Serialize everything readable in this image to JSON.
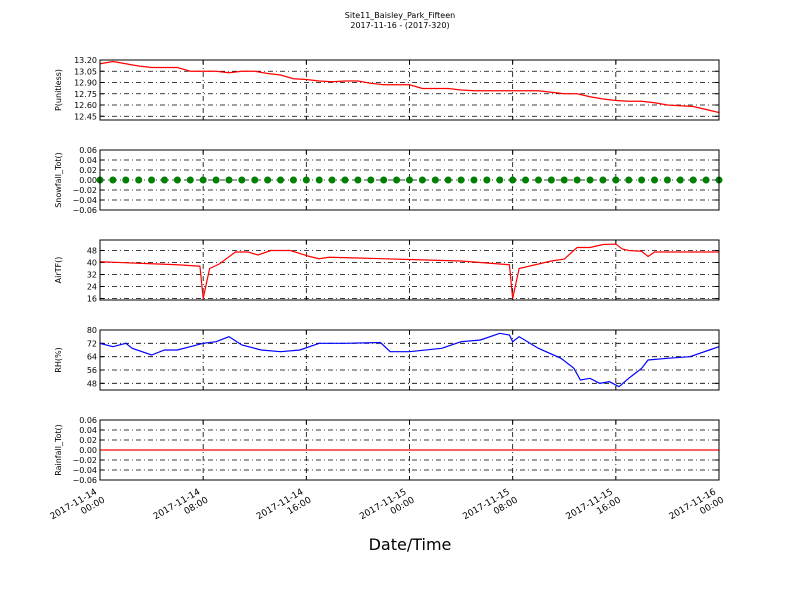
{
  "chart_data": [
    {
      "type": "line",
      "title": "Site11_Baisley_Park_Fifteen",
      "subtitle": "2017-11-16 - (2017-320)",
      "ylabel": "P(unitless)",
      "ylim": [
        12.4,
        13.2
      ],
      "yticks": [
        {
          "value": 12.45,
          "label": "12.45"
        },
        {
          "value": 12.6,
          "label": "12.60"
        },
        {
          "value": 12.75,
          "label": "12.75"
        },
        {
          "value": 12.9,
          "label": "12.90"
        },
        {
          "value": 13.05,
          "label": "13.05"
        },
        {
          "value": 13.2,
          "label": "13.20"
        }
      ],
      "grid": true,
      "series": [
        {
          "color": "#ff0000",
          "x": [
            "2017-11-14 00:00",
            "2017-11-14 01:00",
            "2017-11-14 02:00",
            "2017-11-14 03:00",
            "2017-11-14 04:00",
            "2017-11-14 05:00",
            "2017-11-14 06:00",
            "2017-11-14 07:00",
            "2017-11-14 08:00",
            "2017-11-14 09:00",
            "2017-11-14 10:00",
            "2017-11-14 11:00",
            "2017-11-14 12:00",
            "2017-11-14 13:00",
            "2017-11-14 14:00",
            "2017-11-14 15:00",
            "2017-11-14 16:00",
            "2017-11-14 17:00",
            "2017-11-14 18:00",
            "2017-11-14 19:00",
            "2017-11-14 20:00",
            "2017-11-14 21:00",
            "2017-11-14 22:00",
            "2017-11-14 23:00",
            "2017-11-15 00:00",
            "2017-11-15 01:00",
            "2017-11-15 02:00",
            "2017-11-15 03:00",
            "2017-11-15 04:00",
            "2017-11-15 05:00",
            "2017-11-15 06:00",
            "2017-11-15 07:00",
            "2017-11-15 08:00",
            "2017-11-15 09:00",
            "2017-11-15 10:00",
            "2017-11-15 11:00",
            "2017-11-15 12:00",
            "2017-11-15 13:00",
            "2017-11-15 14:00",
            "2017-11-15 15:00",
            "2017-11-15 16:00",
            "2017-11-15 17:00",
            "2017-11-15 18:00",
            "2017-11-15 19:00",
            "2017-11-15 20:00",
            "2017-11-15 21:00",
            "2017-11-15 22:00",
            "2017-11-15 23:00",
            "2017-11-16 00:00"
          ],
          "values": [
            13.15,
            13.18,
            13.15,
            13.12,
            13.1,
            13.1,
            13.1,
            13.05,
            13.05,
            13.05,
            13.03,
            13.05,
            13.05,
            13.02,
            13.0,
            12.95,
            12.94,
            12.92,
            12.91,
            12.92,
            12.92,
            12.89,
            12.87,
            12.87,
            12.87,
            12.82,
            12.82,
            12.82,
            12.8,
            12.79,
            12.79,
            12.79,
            12.79,
            12.79,
            12.79,
            12.77,
            12.75,
            12.75,
            12.71,
            12.68,
            12.66,
            12.65,
            12.65,
            12.63,
            12.6,
            12.59,
            12.58,
            12.54,
            12.5
          ]
        }
      ]
    },
    {
      "type": "scatter",
      "ylabel": "Snowfall_Tot()",
      "ylim": [
        -0.06,
        0.06
      ],
      "yticks": [
        {
          "value": -0.06,
          "label": "−0.06"
        },
        {
          "value": -0.04,
          "label": "−0.04"
        },
        {
          "value": -0.02,
          "label": "−0.02"
        },
        {
          "value": 0,
          "label": "0.00"
        },
        {
          "value": 0.02,
          "label": "0.02"
        },
        {
          "value": 0.04,
          "label": "0.04"
        },
        {
          "value": 0.06,
          "label": "0.06"
        }
      ],
      "grid": true,
      "series": [
        {
          "color": "#008000",
          "x": [
            "2017-11-14 00:00",
            "2017-11-14 01:00",
            "2017-11-14 02:00",
            "2017-11-14 03:00",
            "2017-11-14 04:00",
            "2017-11-14 05:00",
            "2017-11-14 06:00",
            "2017-11-14 07:00",
            "2017-11-14 08:00",
            "2017-11-14 09:00",
            "2017-11-14 10:00",
            "2017-11-14 11:00",
            "2017-11-14 12:00",
            "2017-11-14 13:00",
            "2017-11-14 14:00",
            "2017-11-14 15:00",
            "2017-11-14 16:00",
            "2017-11-14 17:00",
            "2017-11-14 18:00",
            "2017-11-14 19:00",
            "2017-11-14 20:00",
            "2017-11-14 21:00",
            "2017-11-14 22:00",
            "2017-11-14 23:00",
            "2017-11-15 00:00",
            "2017-11-15 01:00",
            "2017-11-15 02:00",
            "2017-11-15 03:00",
            "2017-11-15 04:00",
            "2017-11-15 05:00",
            "2017-11-15 06:00",
            "2017-11-15 07:00",
            "2017-11-15 08:00",
            "2017-11-15 09:00",
            "2017-11-15 10:00",
            "2017-11-15 11:00",
            "2017-11-15 12:00",
            "2017-11-15 13:00",
            "2017-11-15 14:00",
            "2017-11-15 15:00",
            "2017-11-15 16:00",
            "2017-11-15 17:00",
            "2017-11-15 18:00",
            "2017-11-15 19:00",
            "2017-11-15 20:00",
            "2017-11-15 21:00",
            "2017-11-15 22:00",
            "2017-11-15 23:00",
            "2017-11-16 00:00"
          ],
          "values": [
            0,
            0,
            0,
            0,
            0,
            0,
            0,
            0,
            0,
            0,
            0,
            0,
            0,
            0,
            0,
            0,
            0,
            0,
            0,
            0,
            0,
            0,
            0,
            0,
            0,
            0,
            0,
            0,
            0,
            0,
            0,
            0,
            0,
            0,
            0,
            0,
            0,
            0,
            0,
            0,
            0,
            0,
            0,
            0,
            0,
            0,
            0,
            0,
            0
          ]
        }
      ]
    },
    {
      "type": "line",
      "ylabel": "AirTF()",
      "ylim": [
        15,
        55
      ],
      "yticks": [
        16,
        24,
        32,
        40,
        48
      ],
      "grid": true,
      "series": [
        {
          "color": "#ff0000",
          "x": [
            "2017-11-14 00:00",
            "2017-11-14 03:00",
            "2017-11-14 06:00",
            "2017-11-14 07:45",
            "2017-11-14 08:00",
            "2017-11-14 08:30",
            "2017-11-14 09:15",
            "2017-11-14 10:30",
            "2017-11-14 11:30",
            "2017-11-14 12:15",
            "2017-11-14 13:15",
            "2017-11-14 14:45",
            "2017-11-14 16:15",
            "2017-11-14 17:00",
            "2017-11-14 17:45",
            "2017-11-14 20:00",
            "2017-11-15 00:00",
            "2017-11-15 04:00",
            "2017-11-15 07:00",
            "2017-11-15 07:45",
            "2017-11-15 08:00",
            "2017-11-15 08:30",
            "2017-11-15 09:30",
            "2017-11-15 11:00",
            "2017-11-15 12:00",
            "2017-11-15 13:00",
            "2017-11-15 14:00",
            "2017-11-15 15:00",
            "2017-11-15 16:00",
            "2017-11-15 16:30",
            "2017-11-15 17:00",
            "2017-11-15 18:00",
            "2017-11-15 18:30",
            "2017-11-15 19:00",
            "2017-11-15 20:00",
            "2017-11-16 00:00"
          ],
          "values": [
            40.5,
            39.5,
            38.5,
            37.5,
            16,
            36,
            39,
            47,
            47,
            45,
            48,
            48,
            44,
            42.5,
            43.5,
            43,
            42,
            41,
            39,
            38.5,
            16,
            36,
            38,
            41,
            42.3,
            50,
            50,
            52,
            52.3,
            49,
            48,
            47.5,
            44,
            47,
            47,
            47
          ]
        }
      ]
    },
    {
      "type": "line",
      "ylabel": "RH(%)",
      "ylim": [
        44,
        80
      ],
      "yticks": [
        48,
        56,
        64,
        72,
        80
      ],
      "grid": true,
      "series": [
        {
          "color": "#0000ff",
          "x": [
            "2017-11-14 00:00",
            "2017-11-14 01:00",
            "2017-11-14 02:00",
            "2017-11-14 02:30",
            "2017-11-14 04:00",
            "2017-11-14 05:00",
            "2017-11-14 06:00",
            "2017-11-14 07:00",
            "2017-11-14 08:00",
            "2017-11-14 09:00",
            "2017-11-14 10:00",
            "2017-11-14 11:00",
            "2017-11-14 12:30",
            "2017-11-14 14:00",
            "2017-11-14 15:30",
            "2017-11-14 17:00",
            "2017-11-14 19:00",
            "2017-11-14 21:45",
            "2017-11-14 22:30",
            "2017-11-15 00:00",
            "2017-11-15 02:30",
            "2017-11-15 04:00",
            "2017-11-15 05:30",
            "2017-11-15 07:00",
            "2017-11-15 07:45",
            "2017-11-15 08:00",
            "2017-11-15 08:30",
            "2017-11-15 10:00",
            "2017-11-15 11:45",
            "2017-11-15 12:45",
            "2017-11-15 13:15",
            "2017-11-15 14:00",
            "2017-11-15 14:45",
            "2017-11-15 15:30",
            "2017-11-15 16:15",
            "2017-11-15 17:00",
            "2017-11-15 18:00",
            "2017-11-15 18:30",
            "2017-11-15 20:00",
            "2017-11-15 21:45",
            "2017-11-15 23:15",
            "2017-11-16 00:00"
          ],
          "values": [
            72,
            70,
            72,
            69,
            65,
            68,
            68,
            70,
            72,
            73,
            76,
            71,
            68,
            67,
            68,
            72,
            72,
            72.5,
            67,
            67,
            69,
            73,
            74,
            78,
            77,
            73,
            76,
            69,
            63,
            57,
            50,
            51,
            48,
            49,
            46,
            51,
            57,
            62,
            63,
            64,
            68,
            70
          ]
        }
      ]
    },
    {
      "type": "line",
      "ylabel": "Rainfall_Tot()",
      "xlabel": "Date/Time",
      "ylim": [
        -0.06,
        0.06
      ],
      "yticks": [
        {
          "value": -0.06,
          "label": "−0.06"
        },
        {
          "value": -0.04,
          "label": "−0.04"
        },
        {
          "value": -0.02,
          "label": "−0.02"
        },
        {
          "value": 0,
          "label": "0.00"
        },
        {
          "value": 0.02,
          "label": "0.02"
        },
        {
          "value": 0.04,
          "label": "0.04"
        },
        {
          "value": 0.06,
          "label": "0.06"
        }
      ],
      "grid": true,
      "xlim": [
        "2017-11-14 00:00",
        "2017-11-16 00:00"
      ],
      "xticks": [
        "2017-11-14 00:00",
        "2017-11-14 08:00",
        "2017-11-14 16:00",
        "2017-11-15 00:00",
        "2017-11-15 08:00",
        "2017-11-15 16:00",
        "2017-11-16 00:00"
      ],
      "series": [
        {
          "color": "#ff0000",
          "x": [
            "2017-11-14 00:00",
            "2017-11-16 00:00"
          ],
          "values": [
            0,
            0
          ]
        }
      ]
    }
  ]
}
